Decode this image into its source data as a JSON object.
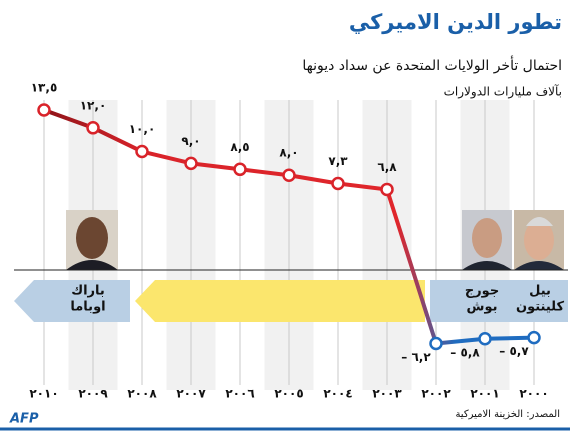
{
  "chart_data": {
    "type": "line",
    "title": "تطور الدين الاميركي",
    "subtitle": "احتمال تأخر الولايات المتحدة عن سداد ديونها",
    "unit_label": "بآلاف مليارات الدولارات",
    "source": "المصدر: الخزينة الاميركية",
    "logo": "AFP",
    "categories": [
      "٢٠٠٠",
      "٢٠٠١",
      "٢٠٠٢",
      "٢٠٠٣",
      "٢٠٠٤",
      "٢٠٠٥",
      "٢٠٠٦",
      "٢٠٠٧",
      "٢٠٠٨",
      "٢٠٠٩",
      "٢٠١٠"
    ],
    "series": [
      {
        "color": "#d9232a",
        "negative_color": "#1f6cc0",
        "values": [
          -5.7,
          -5.8,
          -6.2,
          6.8,
          7.3,
          8.0,
          8.5,
          9.0,
          10.0,
          12.0,
          13.5
        ],
        "value_labels": [
          "– ٥,٧",
          "– ٥,٨",
          "– ٦,٢",
          "٦,٨",
          "٧,٣",
          "٨,٠",
          "٨,٥",
          "٩,٠",
          "١٠,٠",
          "١٢,٠",
          "١٣,٥"
        ]
      }
    ],
    "ylim": [
      -9,
      18
    ],
    "presidents": [
      {
        "lines": [
          "باراك",
          "اوباما"
        ]
      },
      {
        "lines": [
          "جورج",
          "بوش"
        ]
      },
      {
        "lines": [
          "بيل",
          "كلينتون"
        ]
      }
    ]
  }
}
